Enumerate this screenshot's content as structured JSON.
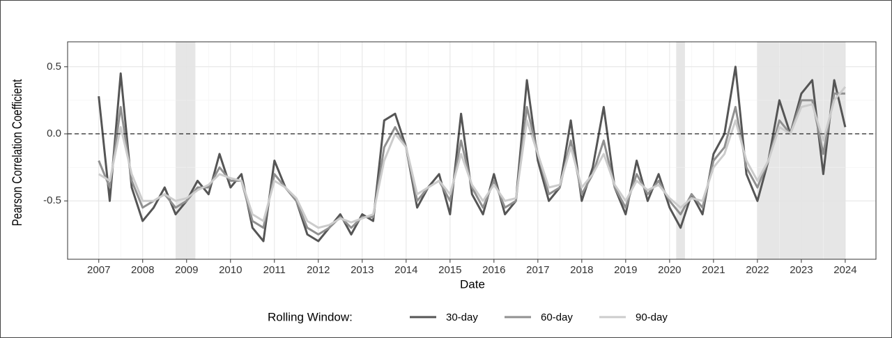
{
  "chart_data": {
    "type": "line",
    "x_label": "Date",
    "y_label": "Pearson Correlation Coefficient",
    "legend_title": "Rolling Window:",
    "legend": "bottom",
    "grid": true,
    "reference_line": 0,
    "shaded_periods": [
      [
        2008.75,
        2009.2
      ],
      [
        2020.15,
        2020.35
      ],
      [
        2022.0,
        2024.0
      ]
    ],
    "xlim": [
      2006.29,
      2024.7
    ],
    "xticks": [
      2007,
      2008,
      2009,
      2010,
      2011,
      2012,
      2013,
      2014,
      2015,
      2016,
      2017,
      2018,
      2019,
      2020,
      2021,
      2022,
      2023,
      2024
    ],
    "ylim": [
      -0.935,
      0.686
    ],
    "yticks": [
      -0.5,
      {
        "value": 0,
        "label": "0.0"
      },
      0.5
    ],
    "x": [
      2007.0,
      2007.25,
      2007.5,
      2007.75,
      2008.0,
      2008.25,
      2008.5,
      2008.75,
      2009.0,
      2009.25,
      2009.5,
      2009.75,
      2010.0,
      2010.25,
      2010.5,
      2010.75,
      2011.0,
      2011.25,
      2011.5,
      2011.75,
      2012.0,
      2012.25,
      2012.5,
      2012.75,
      2013.0,
      2013.25,
      2013.5,
      2013.75,
      2014.0,
      2014.25,
      2014.5,
      2014.75,
      2015.0,
      2015.25,
      2015.5,
      2015.75,
      2016.0,
      2016.25,
      2016.5,
      2016.75,
      2017.0,
      2017.25,
      2017.5,
      2017.75,
      2018.0,
      2018.25,
      2018.5,
      2018.75,
      2019.0,
      2019.25,
      2019.5,
      2019.75,
      2020.0,
      2020.25,
      2020.5,
      2020.75,
      2021.0,
      2021.25,
      2021.5,
      2021.75,
      2022.0,
      2022.25,
      2022.5,
      2022.75,
      2023.0,
      2023.25,
      2023.5,
      2023.75,
      2024.0
    ],
    "series": [
      {
        "name": "30-day",
        "color": "#555555",
        "values": [
          0.28,
          -0.5,
          0.45,
          -0.4,
          -0.65,
          -0.55,
          -0.4,
          -0.6,
          -0.5,
          -0.35,
          -0.45,
          -0.15,
          -0.4,
          -0.3,
          -0.7,
          -0.8,
          -0.2,
          -0.4,
          -0.5,
          -0.75,
          -0.8,
          -0.7,
          -0.6,
          -0.75,
          -0.6,
          -0.65,
          0.1,
          0.15,
          -0.1,
          -0.55,
          -0.4,
          -0.3,
          -0.6,
          0.15,
          -0.45,
          -0.6,
          -0.3,
          -0.6,
          -0.5,
          0.4,
          -0.2,
          -0.5,
          -0.4,
          0.1,
          -0.5,
          -0.25,
          0.2,
          -0.4,
          -0.6,
          -0.2,
          -0.5,
          -0.3,
          -0.55,
          -0.7,
          -0.45,
          -0.6,
          -0.15,
          0.0,
          0.5,
          -0.3,
          -0.5,
          -0.2,
          0.25,
          0.0,
          0.3,
          0.4,
          -0.3,
          0.4,
          0.05
        ]
      },
      {
        "name": "60-day",
        "color": "#909090",
        "values": [
          -0.2,
          -0.4,
          0.2,
          -0.35,
          -0.55,
          -0.5,
          -0.45,
          -0.55,
          -0.5,
          -0.4,
          -0.4,
          -0.25,
          -0.35,
          -0.35,
          -0.65,
          -0.7,
          -0.3,
          -0.4,
          -0.5,
          -0.7,
          -0.75,
          -0.7,
          -0.62,
          -0.7,
          -0.62,
          -0.62,
          -0.1,
          0.05,
          -0.1,
          -0.5,
          -0.4,
          -0.35,
          -0.5,
          -0.05,
          -0.4,
          -0.55,
          -0.35,
          -0.55,
          -0.5,
          0.2,
          -0.15,
          -0.45,
          -0.4,
          -0.05,
          -0.45,
          -0.3,
          -0.05,
          -0.4,
          -0.55,
          -0.3,
          -0.45,
          -0.35,
          -0.5,
          -0.6,
          -0.45,
          -0.55,
          -0.2,
          -0.1,
          0.2,
          -0.25,
          -0.4,
          -0.2,
          0.1,
          0.0,
          0.25,
          0.25,
          -0.15,
          0.3,
          0.3
        ]
      },
      {
        "name": "90-day",
        "color": "#cccccc",
        "values": [
          -0.3,
          -0.35,
          0.05,
          -0.3,
          -0.5,
          -0.5,
          -0.45,
          -0.5,
          -0.48,
          -0.42,
          -0.38,
          -0.3,
          -0.33,
          -0.35,
          -0.6,
          -0.65,
          -0.35,
          -0.4,
          -0.48,
          -0.65,
          -0.7,
          -0.68,
          -0.63,
          -0.66,
          -0.63,
          -0.6,
          -0.2,
          0.0,
          -0.1,
          -0.45,
          -0.4,
          -0.35,
          -0.45,
          -0.15,
          -0.38,
          -0.5,
          -0.38,
          -0.5,
          -0.48,
          0.1,
          -0.15,
          -0.4,
          -0.38,
          -0.1,
          -0.4,
          -0.3,
          -0.15,
          -0.38,
          -0.5,
          -0.35,
          -0.42,
          -0.38,
          -0.48,
          -0.55,
          -0.48,
          -0.5,
          -0.25,
          -0.15,
          0.1,
          -0.2,
          -0.35,
          -0.2,
          0.05,
          0.0,
          0.2,
          0.22,
          -0.05,
          0.25,
          0.35
        ]
      }
    ]
  }
}
